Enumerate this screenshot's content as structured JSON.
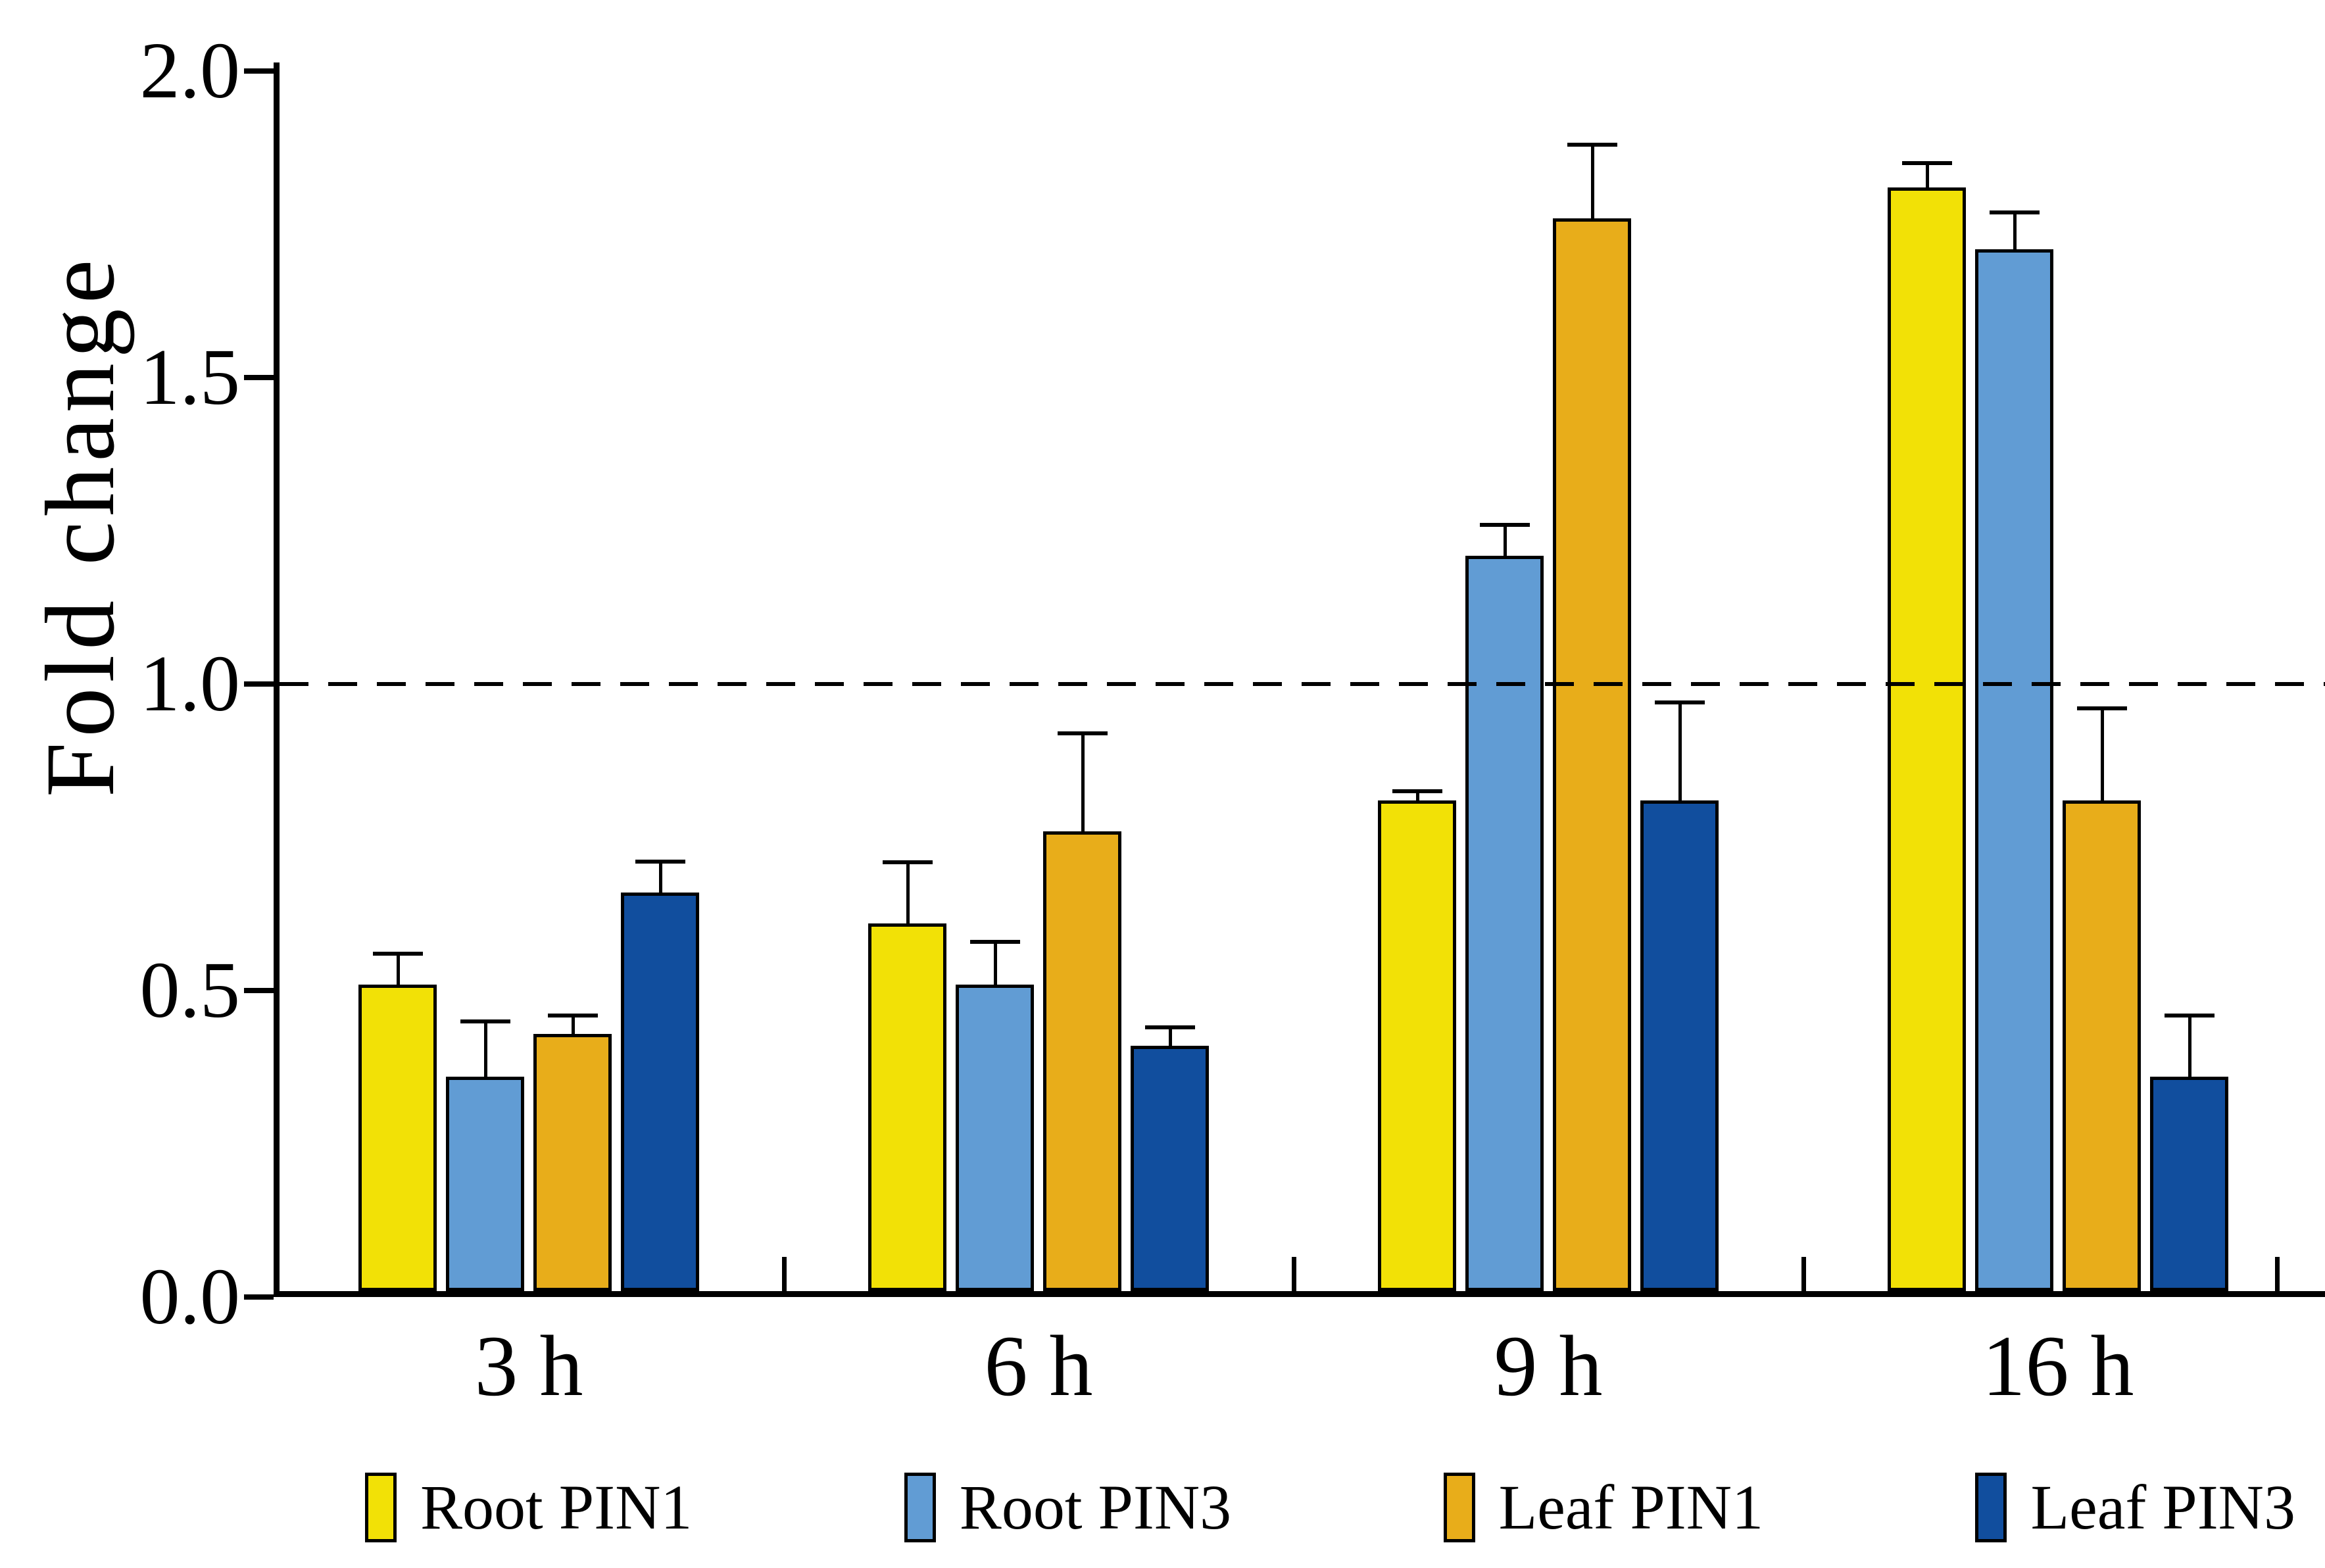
{
  "chart_data": {
    "type": "bar",
    "title": "",
    "xlabel": "",
    "ylabel": "Fold change",
    "categories": [
      "3 h",
      "6 h",
      "9 h",
      "16 h"
    ],
    "series": [
      {
        "name": "Root PIN1",
        "color": "#F2E106",
        "values": [
          0.5,
          0.6,
          0.8,
          1.8
        ],
        "errors": [
          0.05,
          0.1,
          0.015,
          0.04
        ]
      },
      {
        "name": "Root PIN3",
        "color": "#619CD4",
        "values": [
          0.35,
          0.5,
          1.2,
          1.7
        ],
        "errors": [
          0.09,
          0.07,
          0.05,
          0.06
        ]
      },
      {
        "name": "Leaf PIN1",
        "color": "#E8AD1A",
        "values": [
          0.42,
          0.75,
          1.75,
          0.8
        ],
        "errors": [
          0.03,
          0.16,
          0.12,
          0.15
        ]
      },
      {
        "name": "Leaf PIN3",
        "color": "#114E9E",
        "values": [
          0.65,
          0.4,
          0.8,
          0.35
        ],
        "errors": [
          0.05,
          0.03,
          0.16,
          0.1
        ]
      }
    ],
    "ylim": [
      0.0,
      2.0
    ],
    "yticks": [
      "0.0",
      "0.5",
      "1.0",
      "1.5",
      "2.0"
    ],
    "reference_line": 1.0,
    "reference_line_style": "dashed",
    "error_bars": true,
    "grid": false,
    "legend_position": "bottom",
    "bar_edge_color": "#000000",
    "background_color": "#FFFFFF"
  }
}
